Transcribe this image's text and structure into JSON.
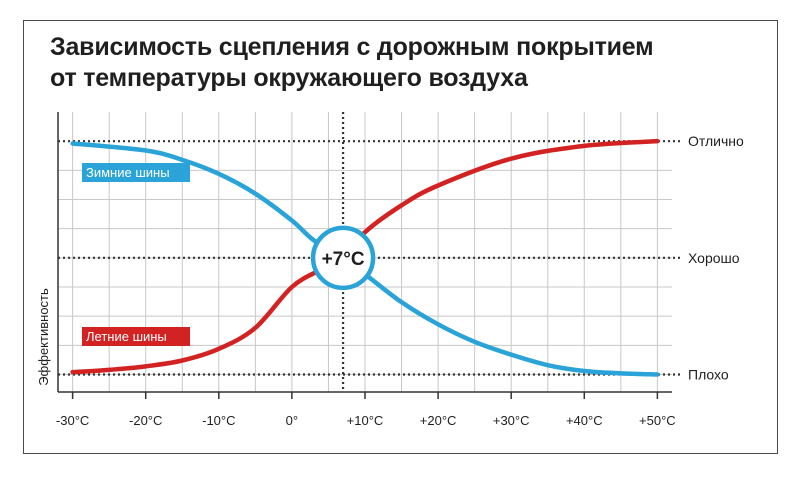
{
  "title": {
    "line1": "Зависимость сцепления с дорожным покрытием",
    "line2": "от температуры окружающего воздуха"
  },
  "chart_data": {
    "type": "line",
    "ylabel": "Эффективность",
    "x_ticks": [
      {
        "label": "-30°C",
        "value": -30
      },
      {
        "label": "-20°C",
        "value": -20
      },
      {
        "label": "-10°C",
        "value": -10
      },
      {
        "label": "0°",
        "value": 0
      },
      {
        "label": "+10°C",
        "value": 10
      },
      {
        "label": "+20°C",
        "value": 20
      },
      {
        "label": "+30°C",
        "value": 30
      },
      {
        "label": "+40°C",
        "value": 40
      },
      {
        "label": "+50°C",
        "value": 50
      }
    ],
    "xlim": [
      -32,
      52
    ],
    "y_levels": [
      {
        "label": "Плохо",
        "value": 0
      },
      {
        "label": "Хорошо",
        "value": 1
      },
      {
        "label": "Отлично",
        "value": 2
      }
    ],
    "ylim": [
      -0.15,
      2.25
    ],
    "grid": true,
    "crossover": {
      "label": "+7°C",
      "x": 7,
      "y": 1
    },
    "series": [
      {
        "name": "Зимние шины",
        "color": "#2aa3d8",
        "x": [
          -30,
          -20,
          -15,
          -10,
          -5,
          0,
          3,
          7,
          10,
          15,
          20,
          25,
          30,
          35,
          40,
          45,
          50
        ],
        "y": [
          1.98,
          1.92,
          1.84,
          1.72,
          1.55,
          1.32,
          1.15,
          1.0,
          0.86,
          0.62,
          0.43,
          0.28,
          0.17,
          0.08,
          0.03,
          0.01,
          0.0
        ]
      },
      {
        "name": "Летние шины",
        "color": "#d22222",
        "x": [
          -30,
          -25,
          -20,
          -15,
          -10,
          -5,
          0,
          4,
          7,
          10,
          15,
          20,
          30,
          40,
          50
        ],
        "y": [
          0.02,
          0.04,
          0.07,
          0.12,
          0.22,
          0.4,
          0.75,
          0.9,
          1.0,
          1.22,
          1.45,
          1.62,
          1.85,
          1.96,
          2.0
        ]
      }
    ]
  }
}
